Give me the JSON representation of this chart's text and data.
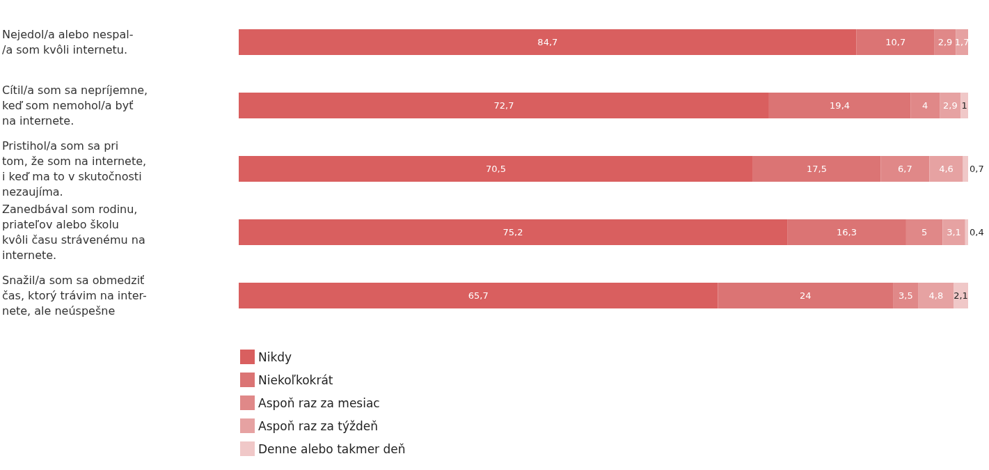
{
  "chart_data": {
    "type": "bar",
    "orientation": "horizontal",
    "stacked": true,
    "legend": "bottom left",
    "tick_labels": "y",
    "grid": false,
    "xlim": [
      0,
      100
    ],
    "categories": [
      "Nejedol/a alebo nespal-\n/a som kvôli internetu.",
      "Cítil/a som sa nepríjemne,\nkeď som nemohol/a byť\nna internete.",
      "Pristihol/a som sa pri\ntom, že som na internete,\ni keď ma to v skutočnosti\nnezaujíma.",
      "Zanedbával som rodinu,\npriateľov alebo školu\nkvôli času strávenému na\ninternete.",
      "Snažil/a som sa obmedziť\nčas, ktorý trávim na inter-\nnete, ale neúspešne"
    ],
    "series": [
      {
        "name": "Nikdy",
        "color": "#d95f5f",
        "values": [
          84.7,
          72.7,
          70.5,
          75.2,
          65.7
        ],
        "value_labels": [
          "84,7",
          "72,7",
          "70,5",
          "75,2",
          "65,7"
        ]
      },
      {
        "name": "Niekoľkokrát",
        "color": "#db7474",
        "values": [
          10.7,
          19.4,
          17.5,
          16.3,
          24
        ],
        "value_labels": [
          "10,7",
          "19,4",
          "17,5",
          "16,3",
          "24"
        ]
      },
      {
        "name": "Aspoň raz za mesiac",
        "color": "#e08888",
        "values": [
          2.9,
          4,
          6.7,
          5,
          3.5
        ],
        "value_labels": [
          "2,9",
          "4",
          "6,7",
          "5",
          "3,5"
        ]
      },
      {
        "name": "Aspoň raz za týždeň",
        "color": "#e6a2a2",
        "values": [
          1.7,
          2.9,
          4.6,
          3.1,
          4.8
        ],
        "value_labels": [
          "1,7",
          "2,9",
          "4,6",
          "3,1",
          "4,8"
        ]
      },
      {
        "name": "Denne alebo takmer deň",
        "color": "#f0c8c8",
        "values": [
          null,
          1,
          0.7,
          0.4,
          2.1
        ],
        "value_labels": [
          null,
          "1",
          "0,7",
          "0,4",
          "2,1"
        ]
      }
    ]
  }
}
